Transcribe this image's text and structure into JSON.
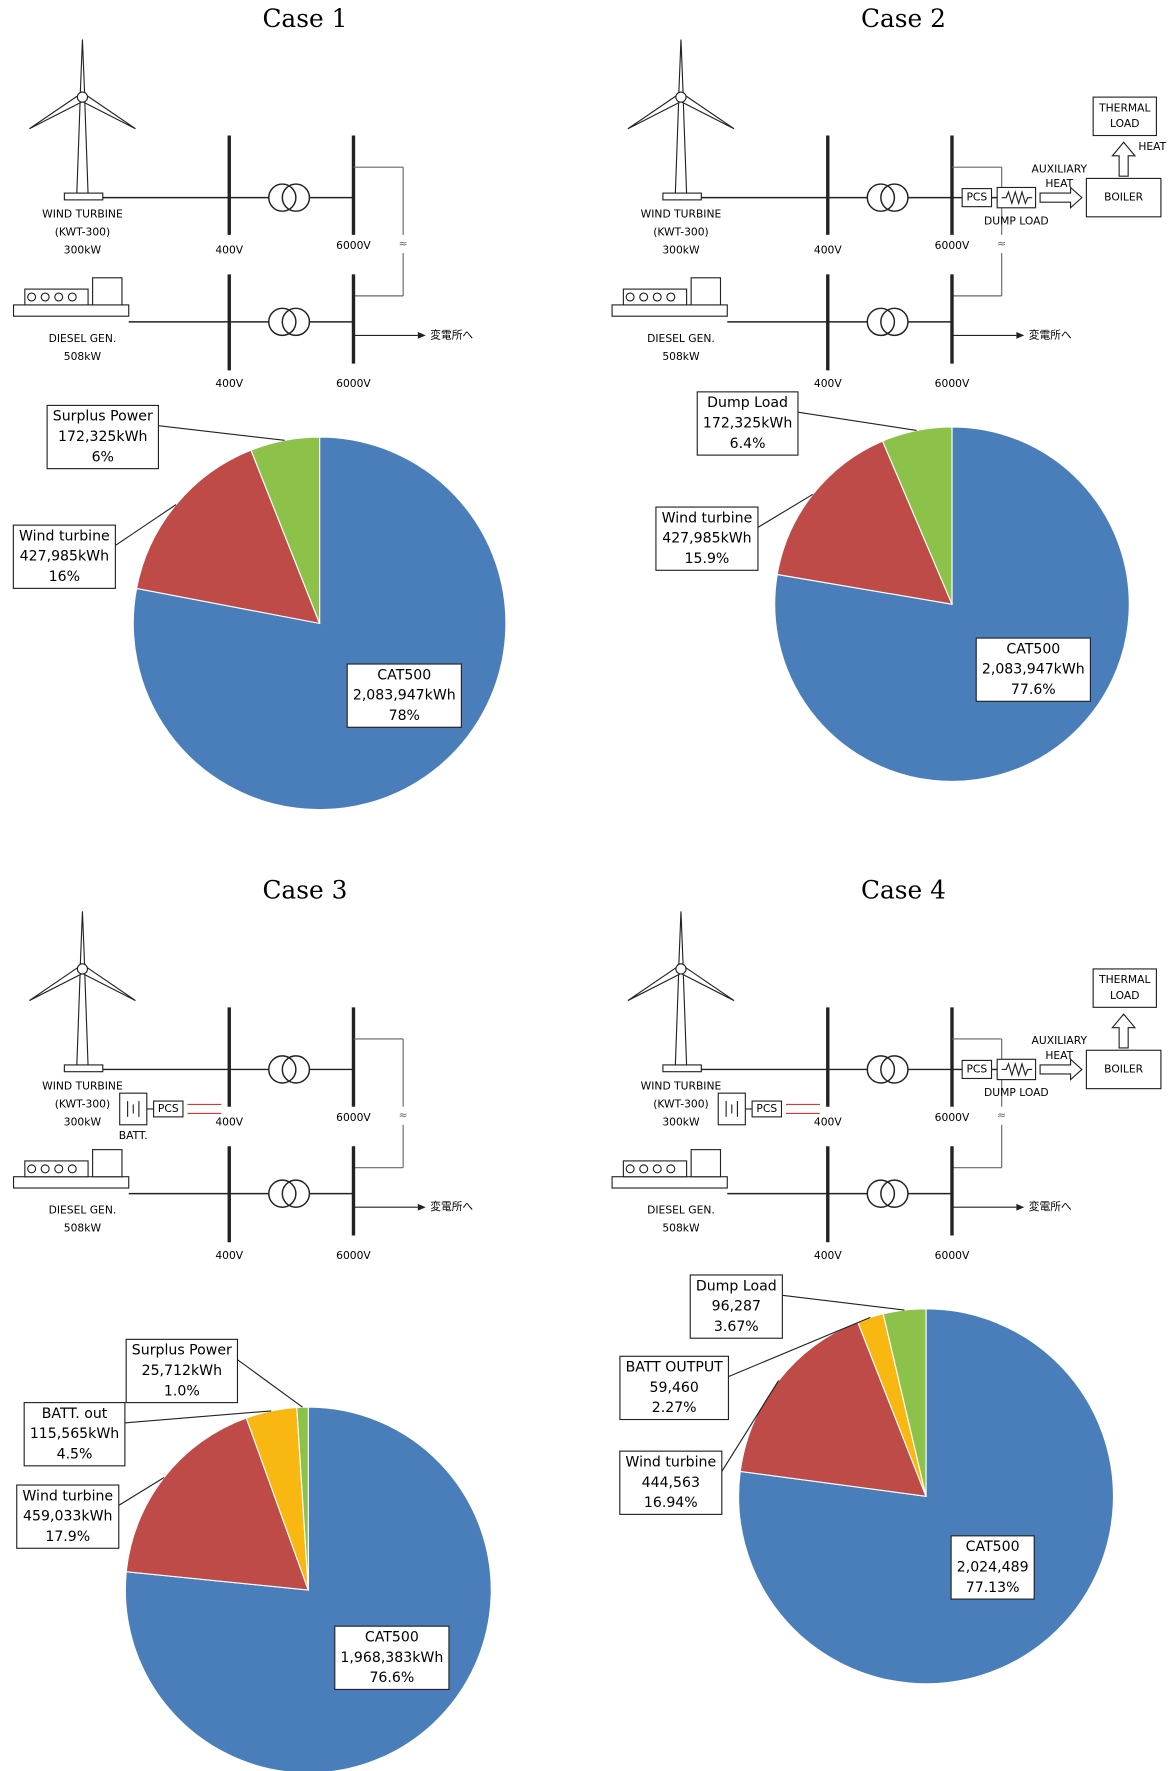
{
  "chart_data": [
    {
      "type": "pie",
      "title": "Case 1",
      "categories": [
        "CAT500",
        "Wind turbine",
        "Surplus Power"
      ],
      "values": [
        78,
        16,
        6
      ],
      "value_labels": [
        "78%",
        "16%",
        "6%"
      ],
      "energy": [
        2083947,
        427985,
        172325
      ],
      "energy_labels": [
        "2,083,947kWh",
        "427,985kWh",
        "172,325kWh"
      ],
      "colors": [
        "#4a7ebb",
        "#be4b48",
        "#8cc24a"
      ]
    },
    {
      "type": "pie",
      "title": "Case 2",
      "categories": [
        "CAT500",
        "Wind turbine",
        "Dump Load"
      ],
      "values": [
        77.6,
        15.9,
        6.4
      ],
      "value_labels": [
        "77.6%",
        "15.9%",
        "6.4%"
      ],
      "energy": [
        2083947,
        427985,
        172325
      ],
      "energy_labels": [
        "2,083,947kWh",
        "427,985kWh",
        "172,325kWh"
      ],
      "colors": [
        "#4a7ebb",
        "#be4b48",
        "#8cc24a"
      ]
    },
    {
      "type": "pie",
      "title": "Case 3",
      "categories": [
        "CAT500",
        "Wind turbine",
        "BATT. out",
        "Surplus Power"
      ],
      "values": [
        76.6,
        17.9,
        4.5,
        1.0
      ],
      "value_labels": [
        "76.6%",
        "17.9%",
        "4.5%",
        "1.0%"
      ],
      "energy": [
        1968383,
        459033,
        115565,
        25712
      ],
      "energy_labels": [
        "1,968,383kWh",
        "459,033kWh",
        "115,565kWh",
        "25,712kWh"
      ],
      "colors": [
        "#4a7ebb",
        "#be4b48",
        "#f9b712",
        "#8cc24a"
      ]
    },
    {
      "type": "pie",
      "title": "Case 4",
      "categories": [
        "CAT500",
        "Wind turbine",
        "BATT OUTPUT",
        "Dump Load"
      ],
      "values": [
        77.13,
        16.94,
        2.27,
        3.67
      ],
      "value_labels": [
        "77.13%",
        "16.94%",
        "2.27%",
        "3.67%"
      ],
      "energy": [
        2024489,
        444563,
        59460,
        96287
      ],
      "energy_labels": [
        "2,024,489",
        "444,563",
        "59,460",
        "96,287"
      ],
      "colors": [
        "#4a7ebb",
        "#be4b48",
        "#f9b712",
        "#8cc24a"
      ]
    }
  ],
  "diagrams": [
    {
      "turbine": [
        "WIND TURBINE",
        "(KWT-300)",
        "300kW"
      ],
      "diesel": [
        "DIESEL GEN.",
        "508kW"
      ],
      "bus_low": [
        "400V",
        "400V"
      ],
      "bus_high": [
        "6000V",
        "6000V"
      ],
      "substation": "変電所へ"
    },
    {
      "turbine": [
        "WIND TURBINE",
        "(KWT-300)",
        "300kW"
      ],
      "diesel": [
        "DIESEL GEN.",
        "508kW"
      ],
      "bus_low": [
        "400V",
        "400V"
      ],
      "bus_high": [
        "6000V",
        "6000V"
      ],
      "substation": "変電所へ",
      "heat": {
        "pcs": "PCS",
        "dump_load": "DUMP LOAD",
        "auxiliary_heat": [
          "AUXILIARY",
          "HEAT"
        ],
        "boiler": "BOILER",
        "thermal_load": [
          "THERMAL",
          "LOAD"
        ],
        "heat": "HEAT"
      }
    },
    {
      "turbine": [
        "WIND TURBINE",
        "(KWT-300)",
        "300kW"
      ],
      "diesel": [
        "DIESEL GEN.",
        "508kW"
      ],
      "bus_low": [
        "400V",
        "400V"
      ],
      "bus_high": [
        "6000V",
        "6000V"
      ],
      "substation": "変電所へ",
      "battery": {
        "pcs": "PCS",
        "batt": "BATT."
      }
    },
    {
      "turbine": [
        "WIND TURBINE",
        "(KWT-300)",
        "300kW"
      ],
      "diesel": [
        "DIESEL GEN.",
        "508kW"
      ],
      "bus_low": [
        "400V",
        "400V"
      ],
      "bus_high": [
        "6000V",
        "6000V"
      ],
      "substation": "変電所へ",
      "heat": {
        "pcs": "PCS",
        "dump_load": "DUMP LOAD",
        "auxiliary_heat": [
          "AUXILIARY",
          "HEAT"
        ],
        "boiler": "BOILER",
        "thermal_load": [
          "THERMAL",
          "LOAD"
        ]
      },
      "battery": {
        "pcs": "PCS"
      }
    }
  ]
}
